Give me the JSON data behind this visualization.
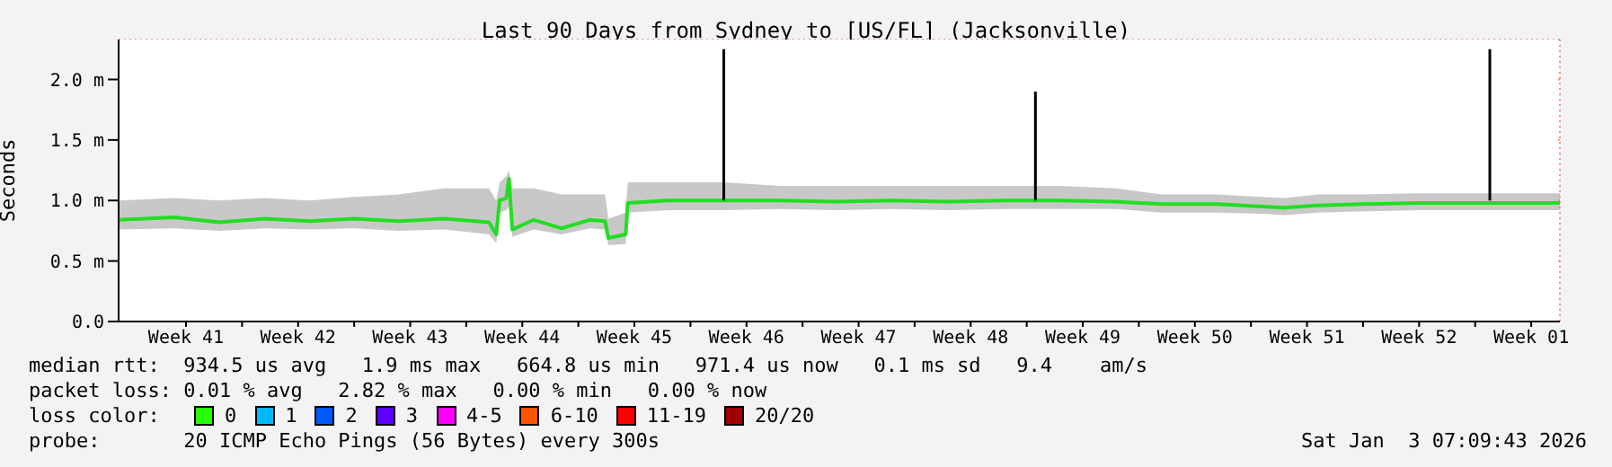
{
  "chart_data": {
    "type": "line",
    "title": "Last 90 Days from Sydney to [US/FL] (Jacksonville)",
    "ylabel": "Seconds",
    "xlim": [
      "2025-10-05T07:00",
      "2026-01-03T07:00"
    ],
    "xticks": [
      {
        "value": "2025-10-09T12:00",
        "label": "Week 41"
      },
      {
        "value": "2025-10-13",
        "label": null
      },
      {
        "value": "2025-10-16T12:00",
        "label": "Week 42"
      },
      {
        "value": "2025-10-20",
        "label": null
      },
      {
        "value": "2025-10-23T12:00",
        "label": "Week 43"
      },
      {
        "value": "2025-10-27",
        "label": null
      },
      {
        "value": "2025-10-30T12:00",
        "label": "Week 44"
      },
      {
        "value": "2025-11-03",
        "label": null
      },
      {
        "value": "2025-11-06T12:00",
        "label": "Week 45"
      },
      {
        "value": "2025-11-10",
        "label": null
      },
      {
        "value": "2025-11-13T12:00",
        "label": "Week 46"
      },
      {
        "value": "2025-11-17",
        "label": null
      },
      {
        "value": "2025-11-20T12:00",
        "label": "Week 47"
      },
      {
        "value": "2025-11-24",
        "label": null
      },
      {
        "value": "2025-11-27T12:00",
        "label": "Week 48"
      },
      {
        "value": "2025-12-01",
        "label": null
      },
      {
        "value": "2025-12-04T12:00",
        "label": "Week 49"
      },
      {
        "value": "2025-12-08",
        "label": null
      },
      {
        "value": "2025-12-11T12:00",
        "label": "Week 50"
      },
      {
        "value": "2025-12-15",
        "label": null
      },
      {
        "value": "2025-12-18T12:00",
        "label": "Week 51"
      },
      {
        "value": "2025-12-22",
        "label": null
      },
      {
        "value": "2025-12-25T12:00",
        "label": "Week 52"
      },
      {
        "value": "2025-12-29",
        "label": null
      },
      {
        "value": "2026-01-01T12:00",
        "label": "Week 01"
      }
    ],
    "ylim": [
      0,
      2.33
    ],
    "yticks": [
      {
        "value": 0,
        "label": "0.0"
      },
      {
        "value": 0.5,
        "label": "0.5 m"
      },
      {
        "value": 1,
        "label": "1.0 m"
      },
      {
        "value": 1.5,
        "label": "1.5 m"
      },
      {
        "value": 2,
        "label": "2.0 m"
      }
    ],
    "grid": true,
    "marker": "none",
    "line_style": "solid",
    "series": [
      {
        "color": "#22dd22",
        "x": [
          "2025-10-05T07:00",
          "2025-10-08T19:00",
          "2025-10-11T14:00",
          "2025-10-14T10:00",
          "2025-10-17T05:00",
          "2025-10-20T00:00",
          "2025-10-22T19:00",
          "2025-10-25T14:00",
          "2025-10-28T10:00",
          "2025-10-28T21:00",
          "2025-10-29T02:00",
          "2025-10-29T12:00",
          "2025-10-29T16:00",
          "2025-10-29T21:00",
          "2025-10-31T05:00",
          "2025-11-01T23:00",
          "2025-11-03T17:00",
          "2025-11-04T16:00",
          "2025-11-04T21:00",
          "2025-11-05T23:00",
          "2025-11-06T02:00",
          "2025-11-08T14:00",
          "2025-11-12T02:00",
          "2025-11-15T14:00",
          "2025-11-19T02:00",
          "2025-11-22T14:00",
          "2025-11-26T02:00",
          "2025-11-29T14:00",
          "2025-12-03T02:00",
          "2025-12-06T14:00",
          "2025-12-09T10:00",
          "2025-12-12T22:00",
          "2025-12-15T17:00",
          "2025-12-17T02:00",
          "2025-12-19T05:00",
          "2025-12-22T00:00",
          "2025-12-25T12:00",
          "2025-12-29T00:00",
          "2026-01-01T12:00",
          "2026-01-03T07:00"
        ],
        "values": [
          0.84,
          0.86,
          0.82,
          0.85,
          0.83,
          0.85,
          0.83,
          0.85,
          0.82,
          0.72,
          1.0,
          1.02,
          1.18,
          0.76,
          0.84,
          0.77,
          0.84,
          0.83,
          0.69,
          0.72,
          0.98,
          1.0,
          1.0,
          1.0,
          0.99,
          1.0,
          0.99,
          1.0,
          1.0,
          0.99,
          0.97,
          0.97,
          0.95,
          0.94,
          0.96,
          0.97,
          0.98,
          0.98,
          0.98,
          0.98
        ],
        "lower": [
          0.76,
          0.77,
          0.75,
          0.77,
          0.76,
          0.77,
          0.75,
          0.76,
          0.72,
          0.65,
          0.9,
          0.92,
          0.95,
          0.7,
          0.76,
          0.72,
          0.77,
          0.76,
          0.63,
          0.64,
          0.9,
          0.92,
          0.92,
          0.93,
          0.92,
          0.93,
          0.92,
          0.93,
          0.93,
          0.93,
          0.9,
          0.9,
          0.89,
          0.88,
          0.9,
          0.91,
          0.92,
          0.92,
          0.92,
          0.92
        ],
        "upper": [
          1.0,
          1.02,
          1.0,
          1.02,
          1.0,
          1.03,
          1.05,
          1.1,
          1.1,
          1.0,
          1.15,
          1.2,
          1.25,
          1.1,
          1.1,
          1.05,
          1.05,
          1.05,
          0.85,
          0.9,
          1.15,
          1.15,
          1.15,
          1.12,
          1.12,
          1.12,
          1.12,
          1.12,
          1.12,
          1.1,
          1.05,
          1.05,
          1.03,
          1.02,
          1.05,
          1.05,
          1.06,
          1.06,
          1.06,
          1.06
        ]
      },
      {
        "color": "#000000",
        "x": [
          "2025-11-12T02:00",
          "2025-11-12T02:00",
          "2025-11-12T03:00",
          "2025-12-01T13:00",
          "2025-12-01T13:00",
          "2025-12-01T14:00",
          "2025-12-29T22:00",
          "2025-12-29T22:00"
        ],
        "values": [
          1.0,
          2.25,
          null,
          1.0,
          1.9,
          null,
          1.0,
          2.25
        ]
      }
    ],
    "annotations": [
      "median rtt:  934.5 us avg   1.9 ms max   664.8 us min   971.4 us now   0.1 ms sd   9.4    am/s",
      "packet loss: 0.01 % avg   2.82 % max   0.00 % min   0.00 % now",
      "loss color:",
      "0",
      "1",
      "2",
      "3",
      "4-5",
      "6-10",
      "11-19",
      "20/20",
      "probe:       20 ICMP Echo Pings (56 Bytes) every 300s",
      "Sat Jan  3 07:09:43 2026"
    ]
  }
}
